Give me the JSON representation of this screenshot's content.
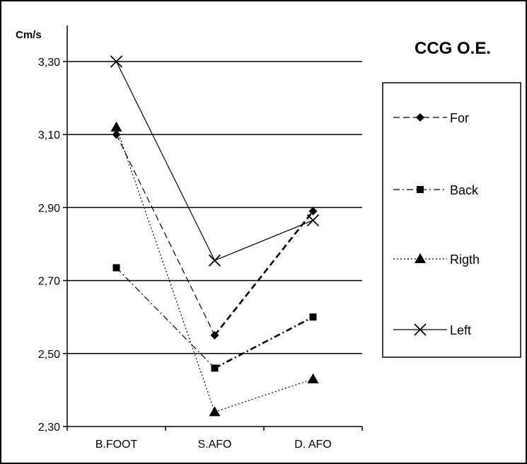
{
  "chart_data": {
    "type": "line",
    "title": "CCG O.E.",
    "ylabel": "Cm/s",
    "xlabel": "",
    "categories": [
      "B.FOOT",
      "S.AFO",
      "D. AFO"
    ],
    "ylim": [
      2.3,
      3.3
    ],
    "yticks": [
      "2,30",
      "2,50",
      "2,70",
      "2,90",
      "3,10",
      "3,30"
    ],
    "grid": true,
    "legend_position": "right",
    "series": [
      {
        "name": "For",
        "values": [
          3.1,
          2.55,
          2.89
        ],
        "marker": "diamond",
        "dash": "long-dash",
        "color": "#000000"
      },
      {
        "name": "Back",
        "values": [
          2.735,
          2.46,
          2.6
        ],
        "marker": "square",
        "dash": "dash-dot",
        "color": "#000000"
      },
      {
        "name": "Rigth",
        "values": [
          3.12,
          2.34,
          2.43
        ],
        "marker": "triangle",
        "dash": "dotted",
        "color": "#000000"
      },
      {
        "name": "Left",
        "values": [
          3.3,
          2.755,
          2.865
        ],
        "marker": "x",
        "dash": "solid",
        "color": "#000000"
      }
    ]
  }
}
